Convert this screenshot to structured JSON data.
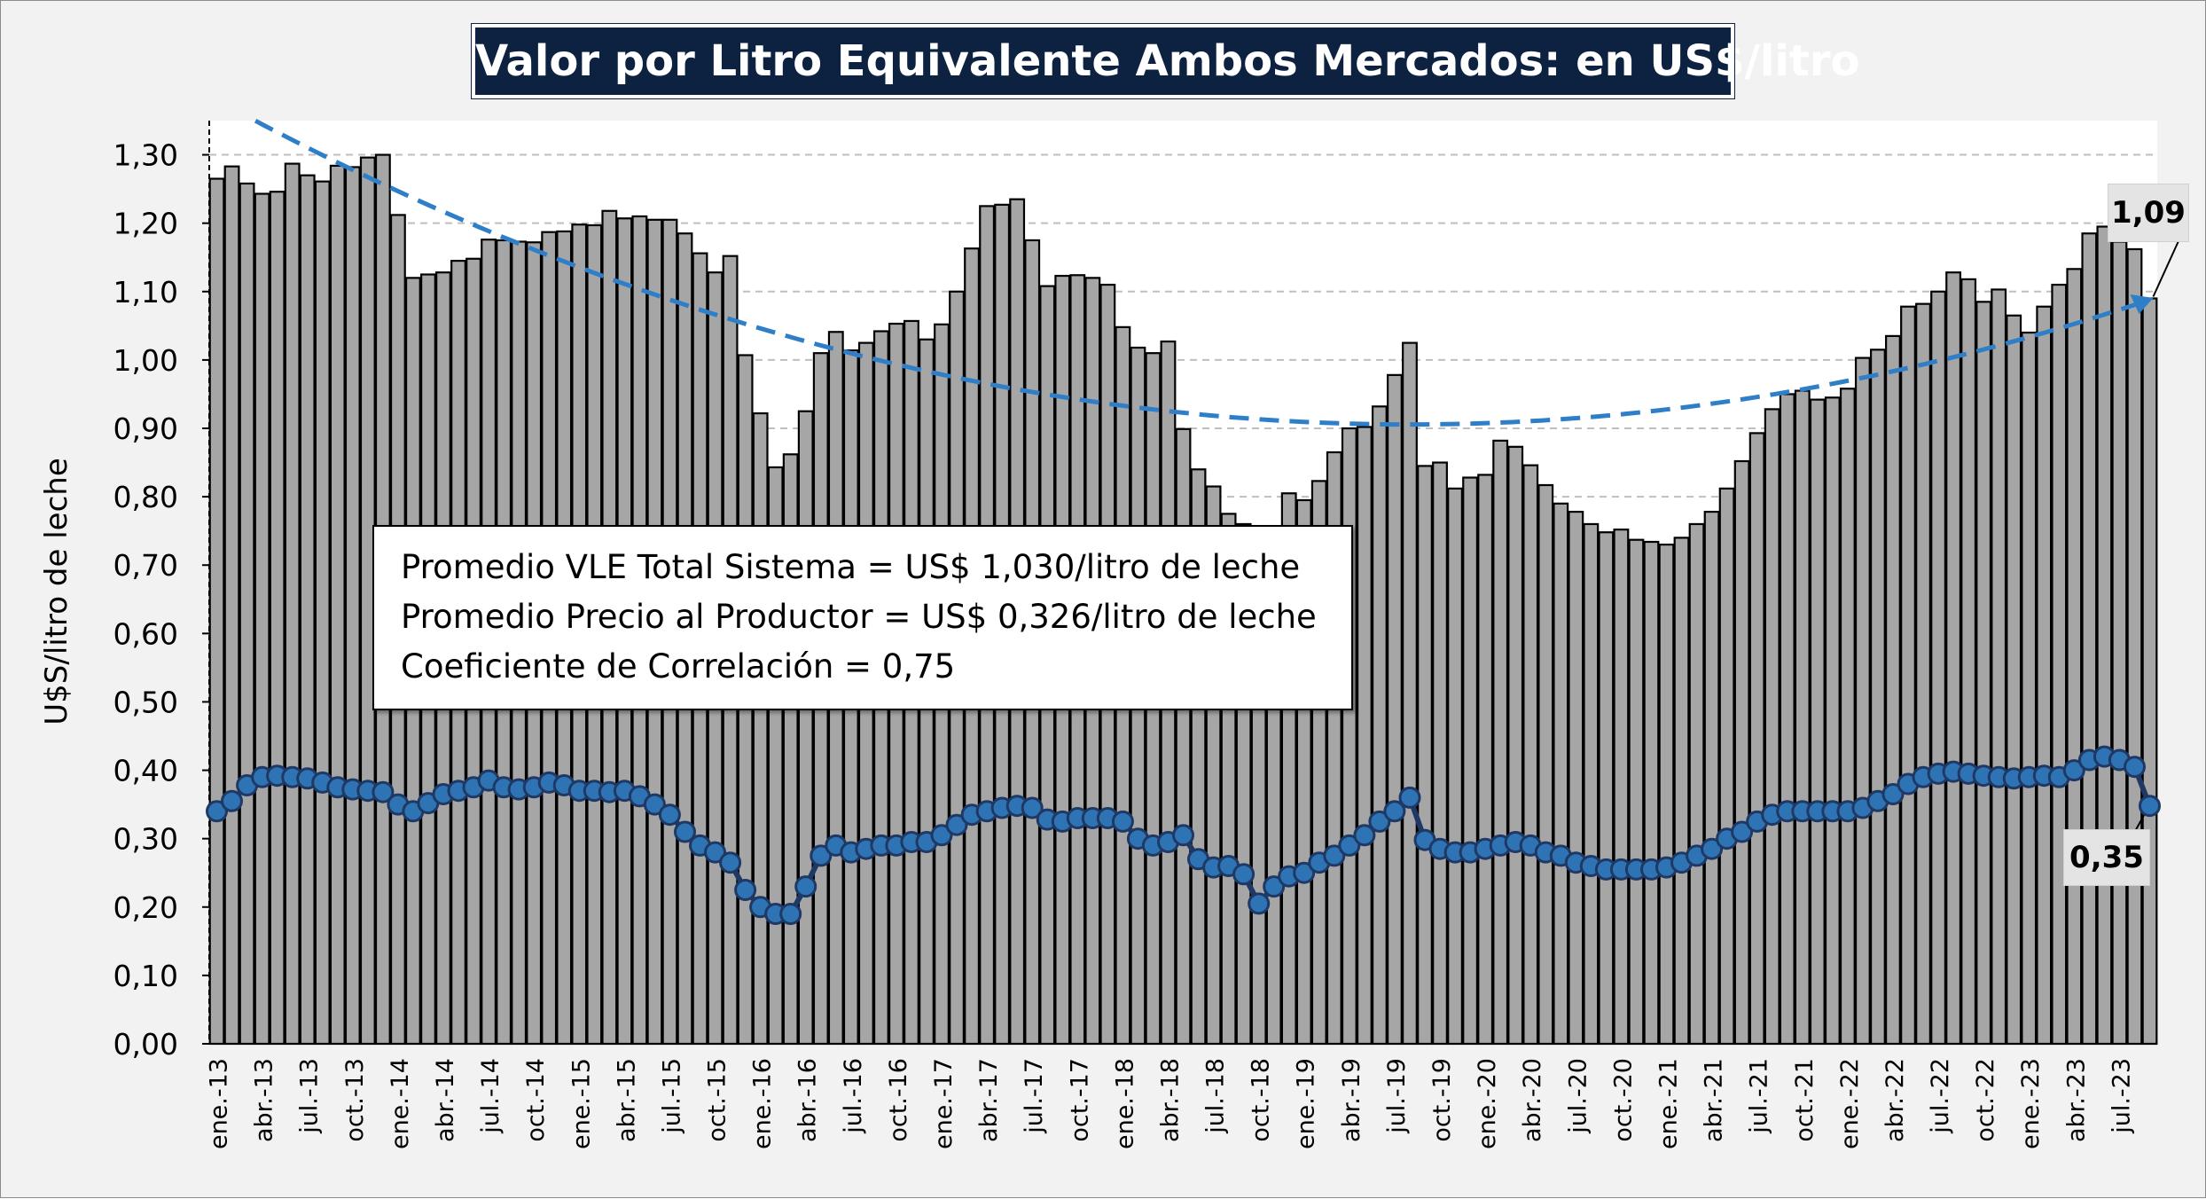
{
  "title": "Valor por Litro Equivalente Ambos Mercados: en US$/litro",
  "stats": {
    "line1": "Promedio VLE Total Sistema = US$ 1,030/litro de leche",
    "line2": "Promedio Precio al Productor = US$ 0,326/litro de leche",
    "line3": "Coeficiente de Correlación = 0,75"
  },
  "callouts": {
    "last_bar": "1,09",
    "last_line": "0,35"
  },
  "colors": {
    "bars": "#a6a6a6",
    "bar_outline": "#000000",
    "line": "#1f3864",
    "markers": "#2e74b5",
    "trend": "#2f7fc8",
    "title_bg": "#0d2240",
    "background": "#f2f2f2"
  },
  "chart_data": {
    "type": "bar",
    "title": "Valor por Litro Equivalente Ambos Mercados: en US$/litro",
    "xlabel": "",
    "ylabel": "U$S/litro de leche",
    "ylim": [
      0,
      1.35
    ],
    "yticks": [
      "0,00",
      "0,10",
      "0,20",
      "0,30",
      "0,40",
      "0,50",
      "0,60",
      "0,70",
      "0,80",
      "0,90",
      "1,00",
      "1,10",
      "1,20",
      "1,30"
    ],
    "ytick_values": [
      0,
      0.1,
      0.2,
      0.3,
      0.4,
      0.5,
      0.6,
      0.7,
      0.8,
      0.9,
      1.0,
      1.1,
      1.2,
      1.3
    ],
    "grid": "horizontal-dashed",
    "x_tick_labels": [
      "ene.-13",
      "abr.-13",
      "jul.-13",
      "oct.-13",
      "ene.-14",
      "abr.-14",
      "jul.-14",
      "oct.-14",
      "ene.-15",
      "abr.-15",
      "jul.-15",
      "oct.-15",
      "ene.-16",
      "abr.-16",
      "jul.-16",
      "oct.-16",
      "ene.-17",
      "abr.-17",
      "jul.-17",
      "oct.-17",
      "ene.-18",
      "abr.-18",
      "jul.-18",
      "oct.-18",
      "ene.-19",
      "abr.-19",
      "jul.-19",
      "oct.-19",
      "ene.-20",
      "abr.-20",
      "jul.-20",
      "oct.-20",
      "ene.-21",
      "abr.-21",
      "jul.-21",
      "oct.-21",
      "ene.-22",
      "abr.-22",
      "jul.-22",
      "oct.-22",
      "ene.-23",
      "abr.-23",
      "jul.-23"
    ],
    "bars": {
      "values": [
        1.265,
        1.283,
        1.258,
        1.243,
        1.246,
        1.287,
        1.27,
        1.261,
        1.284,
        1.282,
        1.296,
        1.3,
        1.212,
        1.12,
        1.125,
        1.128,
        1.145,
        1.148,
        1.176,
        1.175,
        1.173,
        1.172,
        1.187,
        1.188,
        1.198,
        1.197,
        1.218,
        1.207,
        1.21,
        1.205,
        1.205,
        1.185,
        1.156,
        1.128,
        1.152,
        1.007,
        0.922,
        0.843,
        0.862,
        0.925,
        1.01,
        1.041,
        1.014,
        1.025,
        1.042,
        1.053,
        1.057,
        1.03,
        1.052,
        1.1,
        1.163,
        1.225,
        1.227,
        1.235,
        1.175,
        1.108,
        1.123,
        1.124,
        1.12,
        1.11,
        1.048,
        1.018,
        1.01,
        1.027,
        0.899,
        0.84,
        0.815,
        0.775,
        0.76,
        0.71,
        0.72,
        0.805,
        0.795,
        0.823,
        0.865,
        0.9,
        0.902,
        0.932,
        0.978,
        1.025,
        0.845,
        0.85,
        0.812,
        0.828,
        0.832,
        0.882,
        0.873,
        0.846,
        0.817,
        0.79,
        0.778,
        0.76,
        0.748,
        0.752,
        0.737,
        0.734,
        0.73,
        0.74,
        0.76,
        0.778,
        0.812,
        0.852,
        0.893,
        0.928,
        0.95,
        0.955,
        0.942,
        0.945,
        0.958,
        1.003,
        1.015,
        1.035,
        1.078,
        1.082,
        1.1,
        1.128,
        1.118,
        1.085,
        1.103,
        1.065,
        1.04,
        1.078,
        1.11,
        1.133,
        1.185,
        1.195,
        1.173,
        1.162,
        1.09
      ]
    },
    "series": [
      {
        "values": [
          0.34,
          0.355,
          0.378,
          0.39,
          0.392,
          0.39,
          0.388,
          0.382,
          0.375,
          0.372,
          0.37,
          0.368,
          0.35,
          0.34,
          0.352,
          0.365,
          0.37,
          0.375,
          0.385,
          0.375,
          0.372,
          0.375,
          0.382,
          0.378,
          0.37,
          0.37,
          0.368,
          0.37,
          0.362,
          0.35,
          0.335,
          0.31,
          0.29,
          0.28,
          0.265,
          0.225,
          0.2,
          0.19,
          0.19,
          0.23,
          0.275,
          0.29,
          0.28,
          0.285,
          0.29,
          0.29,
          0.295,
          0.295,
          0.305,
          0.32,
          0.335,
          0.34,
          0.345,
          0.348,
          0.345,
          0.328,
          0.325,
          0.33,
          0.33,
          0.33,
          0.325,
          0.3,
          0.29,
          0.295,
          0.305,
          0.27,
          0.258,
          0.26,
          0.248,
          0.205,
          0.23,
          0.245,
          0.25,
          0.265,
          0.275,
          0.29,
          0.305,
          0.325,
          0.34,
          0.36,
          0.298,
          0.285,
          0.28,
          0.28,
          0.285,
          0.29,
          0.295,
          0.29,
          0.28,
          0.275,
          0.265,
          0.26,
          0.255,
          0.255,
          0.255,
          0.255,
          0.258,
          0.265,
          0.275,
          0.285,
          0.3,
          0.31,
          0.325,
          0.335,
          0.34,
          0.34,
          0.34,
          0.34,
          0.34,
          0.345,
          0.355,
          0.365,
          0.38,
          0.39,
          0.395,
          0.398,
          0.395,
          0.392,
          0.39,
          0.388,
          0.39,
          0.392,
          0.39,
          0.4,
          0.415,
          0.42,
          0.415,
          0.405,
          0.348
        ]
      }
    ],
    "trend_start_end": [
      1.35,
      1.09
    ]
  }
}
